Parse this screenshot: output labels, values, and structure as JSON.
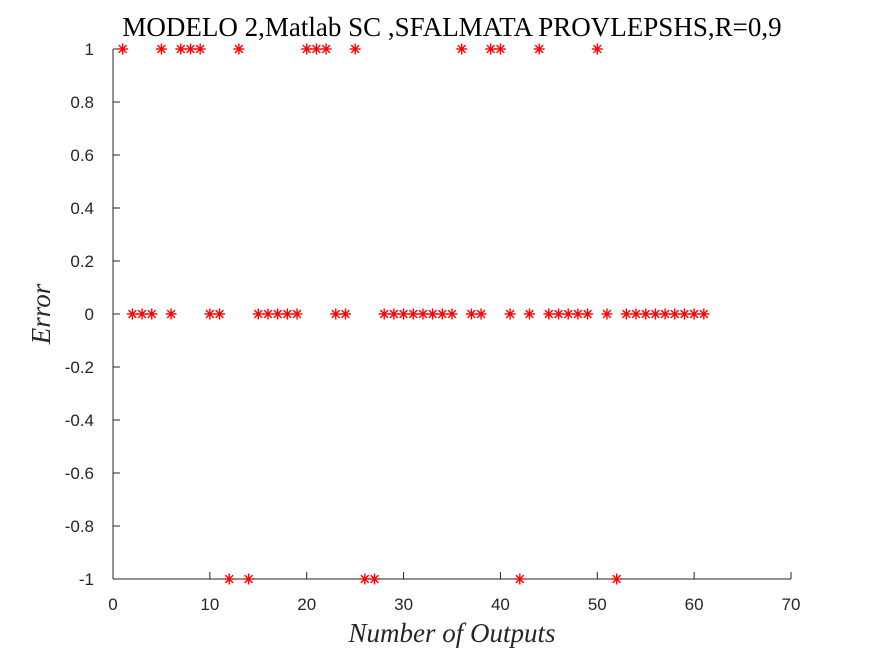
{
  "chart_data": {
    "type": "scatter",
    "title": "MODELO 2,Matlab SC ,SFALMATA PROVLEPSHS,R=0,9",
    "xlabel": "Number of Outputs",
    "ylabel": "Error",
    "xlim": [
      0,
      70
    ],
    "ylim": [
      -1,
      1
    ],
    "xticks": [
      0,
      10,
      20,
      30,
      40,
      50,
      60,
      70
    ],
    "xtick_labels": [
      "0",
      "10",
      "20",
      "30",
      "40",
      "50",
      "60",
      "70"
    ],
    "yticks": [
      -1,
      -0.8,
      -0.6,
      -0.4,
      -0.2,
      0,
      0.2,
      0.4,
      0.6,
      0.8,
      1
    ],
    "ytick_labels": [
      "-1",
      "-0.8",
      "-0.6",
      "-0.4",
      "-0.2",
      "0",
      "0.2",
      "0.4",
      "0.6",
      "0.8",
      "1"
    ],
    "grid": false,
    "marker": "asterisk",
    "marker_color": "#ff0000",
    "x": [
      1,
      2,
      3,
      4,
      5,
      6,
      7,
      8,
      9,
      10,
      11,
      12,
      13,
      14,
      15,
      16,
      17,
      18,
      19,
      20,
      21,
      22,
      23,
      24,
      25,
      26,
      27,
      28,
      29,
      30,
      31,
      32,
      33,
      34,
      35,
      36,
      37,
      38,
      39,
      40,
      41,
      42,
      43,
      44,
      45,
      46,
      47,
      48,
      49,
      50,
      51,
      52,
      53,
      54,
      55,
      56,
      57,
      58,
      59,
      60,
      61
    ],
    "y": [
      1,
      0,
      0,
      0,
      1,
      0,
      1,
      1,
      1,
      0,
      0,
      -1,
      1,
      -1,
      0,
      0,
      0,
      0,
      0,
      1,
      1,
      1,
      0,
      0,
      1,
      -1,
      -1,
      0,
      0,
      0,
      0,
      0,
      0,
      0,
      0,
      1,
      0,
      0,
      1,
      1,
      0,
      -1,
      0,
      1,
      0,
      0,
      0,
      0,
      0,
      1,
      0,
      -1,
      0,
      0,
      0,
      0,
      0,
      0,
      0,
      0,
      0
    ]
  }
}
